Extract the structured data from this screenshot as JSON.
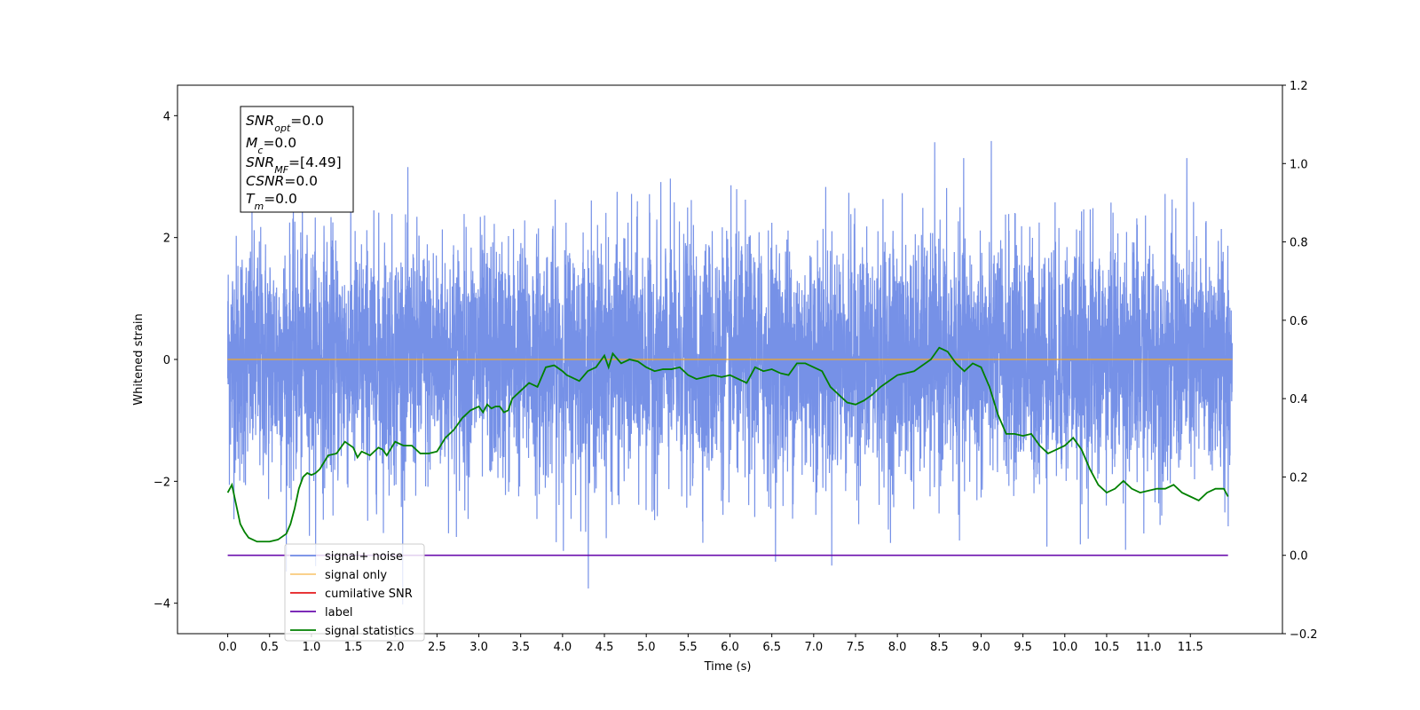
{
  "chart_data": {
    "type": "line",
    "xlabel": "Time (s)",
    "ylabel": "Whitened strain",
    "xlim": [
      -0.6,
      12.6
    ],
    "ylim": [
      -4.5,
      4.5
    ],
    "y2lim": [
      -0.2,
      1.2
    ],
    "xticks": [
      "0.0",
      "0.5",
      "1.0",
      "1.5",
      "2.0",
      "2.5",
      "3.0",
      "3.5",
      "4.0",
      "4.5",
      "5.0",
      "5.5",
      "6.0",
      "6.5",
      "7.0",
      "7.5",
      "8.0",
      "8.5",
      "9.0",
      "9.5",
      "10.0",
      "10.5",
      "11.0",
      "11.5"
    ],
    "yticks": [
      "-4",
      "-2",
      "0",
      "2",
      "4"
    ],
    "y2ticks": [
      "-0.2",
      "0.0",
      "0.2",
      "0.4",
      "0.6",
      "0.8",
      "1.0",
      "1.2"
    ],
    "grid": false,
    "legend_position": "lower-left",
    "annotation": {
      "snr_opt": {
        "base": "SNR",
        "sub": "opt",
        "value": "=0.0"
      },
      "mc": {
        "base": "M",
        "sub": "c",
        "value": "=0.0"
      },
      "snr_mf": {
        "base": "SNR",
        "sub": "MF",
        "value": "=[4.49]"
      },
      "csnr": {
        "base": "CSNR",
        "sub": "",
        "value": "=0.0"
      },
      "tm": {
        "base": "T",
        "sub": "m",
        "value": "=0.0"
      }
    },
    "series": [
      {
        "name": "signal+ noise",
        "color": "#6f8be6",
        "axis": "left",
        "t_range": [
          0.0,
          12.0
        ],
        "envelope_upper": 2.0,
        "envelope_lower": -2.0,
        "spike_max": 3.73,
        "spike_min": -4.05
      },
      {
        "name": "signal only",
        "color": "#f5a623",
        "axis": "left",
        "x": [
          0.0,
          12.0
        ],
        "y": [
          0.0,
          0.0
        ]
      },
      {
        "name": "cumilative SNR",
        "color": "#e41a1c",
        "axis": "right",
        "x": [],
        "y": []
      },
      {
        "name": "label",
        "color": "#6a0dad",
        "axis": "right",
        "x": [
          0.0,
          11.95
        ],
        "y": [
          0.0,
          0.0
        ]
      },
      {
        "name": "signal statistics",
        "color": "#008000",
        "axis": "right",
        "x": [
          0.0,
          0.05,
          0.1,
          0.15,
          0.2,
          0.25,
          0.3,
          0.35,
          0.4,
          0.5,
          0.6,
          0.7,
          0.75,
          0.8,
          0.85,
          0.9,
          0.95,
          1.0,
          1.05,
          1.1,
          1.2,
          1.3,
          1.4,
          1.5,
          1.55,
          1.6,
          1.65,
          1.7,
          1.75,
          1.8,
          1.85,
          1.9,
          2.0,
          2.05,
          2.1,
          2.2,
          2.3,
          2.4,
          2.5,
          2.6,
          2.7,
          2.8,
          2.9,
          3.0,
          3.05,
          3.1,
          3.15,
          3.2,
          3.25,
          3.3,
          3.35,
          3.4,
          3.5,
          3.6,
          3.7,
          3.8,
          3.9,
          4.0,
          4.05,
          4.1,
          4.2,
          4.3,
          4.4,
          4.5,
          4.55,
          4.6,
          4.7,
          4.8,
          4.9,
          5.0,
          5.1,
          5.2,
          5.3,
          5.4,
          5.5,
          5.6,
          5.7,
          5.8,
          5.9,
          6.0,
          6.1,
          6.2,
          6.3,
          6.4,
          6.5,
          6.6,
          6.7,
          6.8,
          6.9,
          7.0,
          7.1,
          7.2,
          7.3,
          7.4,
          7.5,
          7.6,
          7.7,
          7.8,
          7.9,
          8.0,
          8.1,
          8.2,
          8.3,
          8.4,
          8.5,
          8.55,
          8.6,
          8.7,
          8.8,
          8.9,
          9.0,
          9.1,
          9.2,
          9.3,
          9.4,
          9.5,
          9.6,
          9.7,
          9.8,
          9.9,
          10.0,
          10.1,
          10.2,
          10.3,
          10.4,
          10.5,
          10.6,
          10.7,
          10.8,
          10.9,
          11.0,
          11.1,
          11.2,
          11.3,
          11.4,
          11.5,
          11.6,
          11.7,
          11.8,
          11.9,
          11.95
        ],
        "y": [
          0.16,
          0.18,
          0.13,
          0.08,
          0.06,
          0.045,
          0.04,
          0.035,
          0.035,
          0.035,
          0.04,
          0.055,
          0.08,
          0.12,
          0.17,
          0.2,
          0.21,
          0.205,
          0.21,
          0.22,
          0.255,
          0.26,
          0.29,
          0.275,
          0.25,
          0.265,
          0.26,
          0.255,
          0.265,
          0.275,
          0.27,
          0.255,
          0.29,
          0.285,
          0.28,
          0.28,
          0.26,
          0.26,
          0.265,
          0.3,
          0.32,
          0.35,
          0.37,
          0.38,
          0.365,
          0.385,
          0.375,
          0.38,
          0.38,
          0.365,
          0.37,
          0.4,
          0.42,
          0.44,
          0.43,
          0.48,
          0.485,
          0.47,
          0.46,
          0.455,
          0.445,
          0.47,
          0.48,
          0.51,
          0.48,
          0.515,
          0.49,
          0.5,
          0.495,
          0.48,
          0.47,
          0.475,
          0.475,
          0.48,
          0.46,
          0.45,
          0.455,
          0.46,
          0.455,
          0.46,
          0.45,
          0.44,
          0.48,
          0.47,
          0.475,
          0.465,
          0.46,
          0.49,
          0.49,
          0.48,
          0.47,
          0.43,
          0.41,
          0.39,
          0.385,
          0.395,
          0.41,
          0.43,
          0.445,
          0.46,
          0.465,
          0.47,
          0.485,
          0.5,
          0.53,
          0.525,
          0.52,
          0.49,
          0.47,
          0.49,
          0.48,
          0.43,
          0.36,
          0.31,
          0.31,
          0.305,
          0.31,
          0.28,
          0.26,
          0.27,
          0.28,
          0.3,
          0.27,
          0.22,
          0.18,
          0.16,
          0.17,
          0.19,
          0.17,
          0.16,
          0.165,
          0.17,
          0.17,
          0.18,
          0.16,
          0.15,
          0.14,
          0.16,
          0.17,
          0.17,
          0.15
        ]
      }
    ]
  }
}
